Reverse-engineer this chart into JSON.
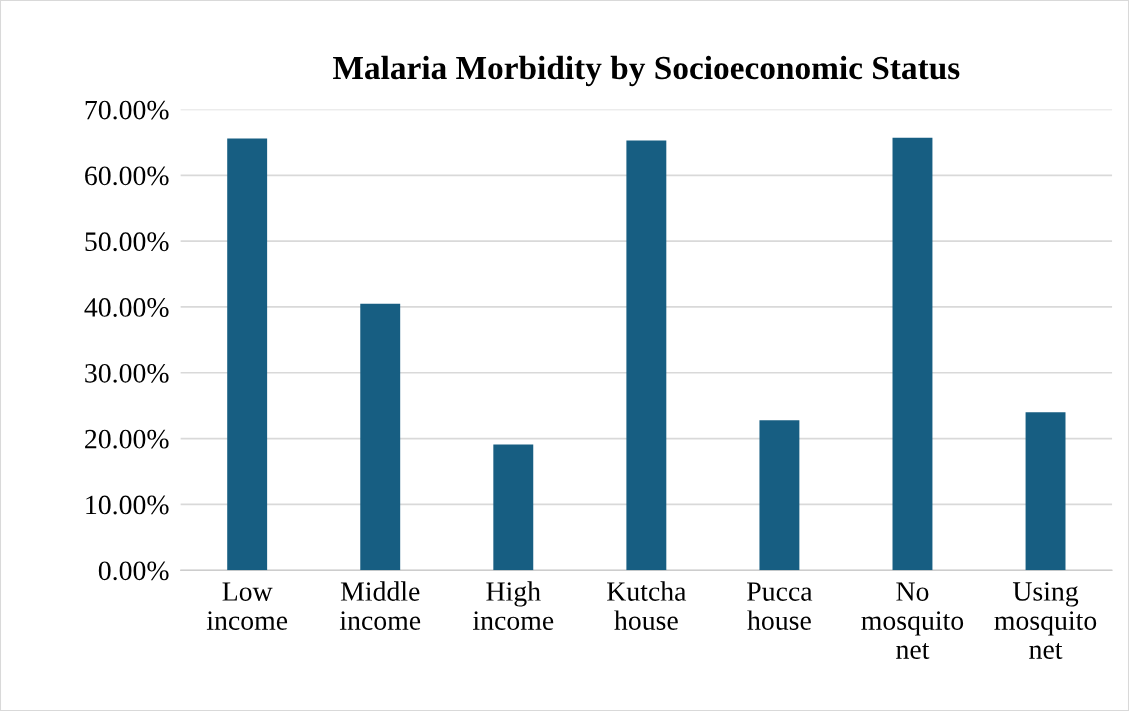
{
  "chart_data": {
    "type": "bar",
    "title": "Malaria Morbidity by Socioeconomic Status",
    "categories": [
      "Low\nincome",
      "Middle\nincome",
      "High\nincome",
      "Kutcha\nhouse",
      "Pucca\nhouse",
      "No\nmosquito\nnet",
      "Using\nmosquito\nnet"
    ],
    "values": [
      65.6,
      40.5,
      19.1,
      65.3,
      22.8,
      65.7,
      24.0
    ],
    "color": "#175e82",
    "ylim": [
      0,
      70
    ],
    "yticks": [
      {
        "value": 0,
        "label": "0.00%"
      },
      {
        "value": 10,
        "label": "10.00%"
      },
      {
        "value": 20,
        "label": "20.00%"
      },
      {
        "value": 30,
        "label": "30.00%"
      },
      {
        "value": 40,
        "label": "40.00%"
      },
      {
        "value": 50,
        "label": "50.00%"
      },
      {
        "value": 60,
        "label": "60.00%"
      },
      {
        "value": 70,
        "label": "70.00%"
      }
    ],
    "grid": "y"
  }
}
